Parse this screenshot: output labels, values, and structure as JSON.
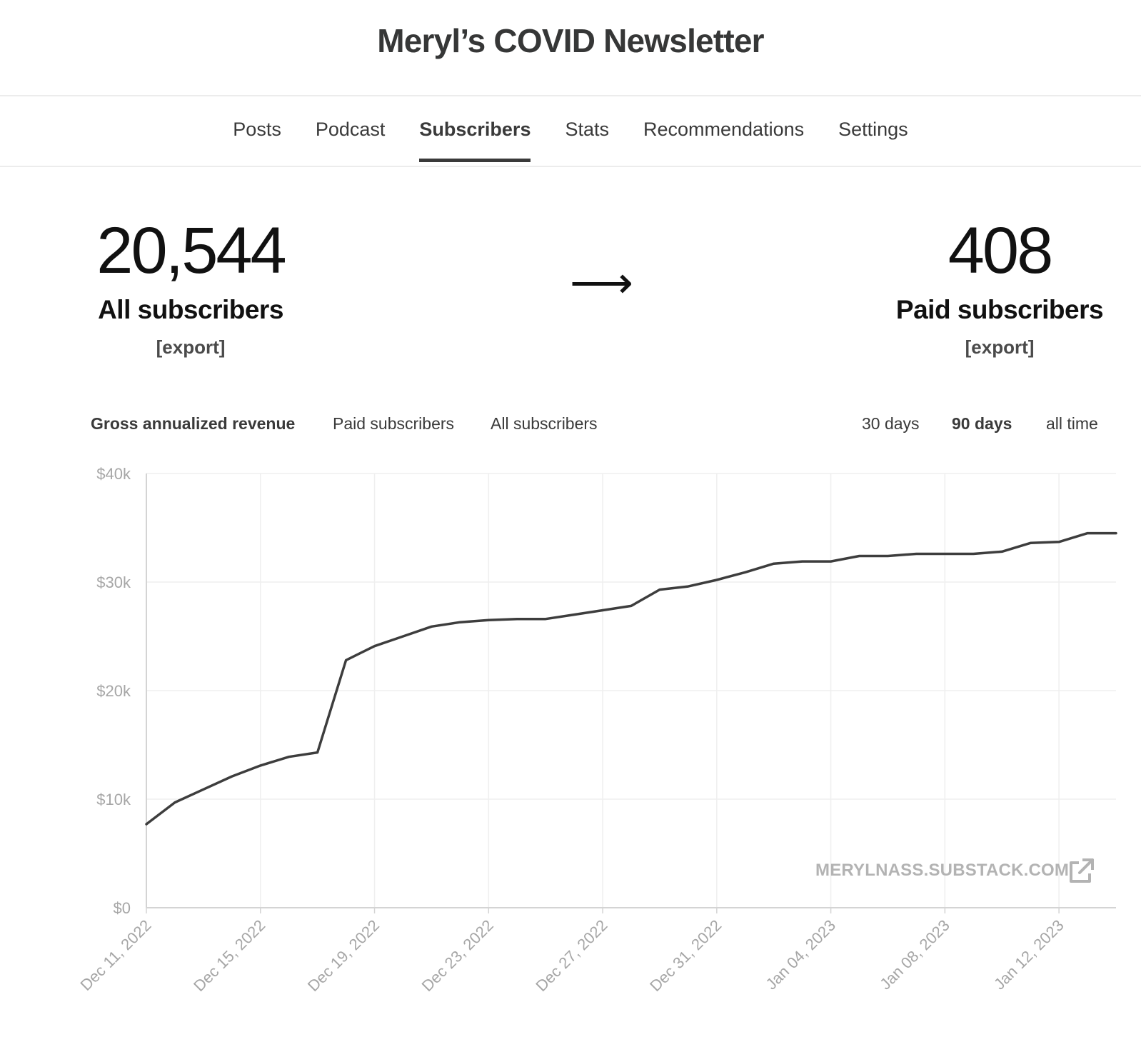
{
  "publication": {
    "title": "Meryl’s COVID Newsletter"
  },
  "nav": {
    "tabs": [
      {
        "label": "Posts"
      },
      {
        "label": "Podcast"
      },
      {
        "label": "Subscribers",
        "active": true
      },
      {
        "label": "Stats"
      },
      {
        "label": "Recommendations"
      },
      {
        "label": "Settings"
      }
    ]
  },
  "metrics": {
    "all": {
      "value": "20,544",
      "label": "All subscribers",
      "export": "[export]"
    },
    "arrow": "⟶",
    "paid": {
      "value": "408",
      "label": "Paid subscribers",
      "export": "[export]"
    }
  },
  "chart_controls": {
    "metrics": [
      {
        "label": "Gross annualized revenue",
        "active": true
      },
      {
        "label": "Paid subscribers"
      },
      {
        "label": "All subscribers"
      }
    ],
    "ranges": [
      {
        "label": "30 days"
      },
      {
        "label": "90 days",
        "active": true
      },
      {
        "label": "all time"
      }
    ]
  },
  "watermark": {
    "text": "MERYLNASS.SUBSTACK.COM",
    "icon": "external-link-icon"
  },
  "chart_data": {
    "type": "line",
    "x_start": "2022-12-11",
    "x": [
      "2022-12-11",
      "2022-12-12",
      "2022-12-13",
      "2022-12-14",
      "2022-12-15",
      "2022-12-16",
      "2022-12-17",
      "2022-12-18",
      "2022-12-19",
      "2022-12-20",
      "2022-12-21",
      "2022-12-22",
      "2022-12-23",
      "2022-12-24",
      "2022-12-25",
      "2022-12-26",
      "2022-12-27",
      "2022-12-28",
      "2022-12-29",
      "2022-12-30",
      "2022-12-31",
      "2023-01-01",
      "2023-01-02",
      "2023-01-03",
      "2023-01-04",
      "2023-01-05",
      "2023-01-06",
      "2023-01-07",
      "2023-01-08",
      "2023-01-09",
      "2023-01-10",
      "2023-01-11",
      "2023-01-12",
      "2023-01-13",
      "2023-01-14"
    ],
    "series": [
      {
        "values": [
          7700,
          9700,
          10900,
          12100,
          13100,
          13900,
          14300,
          22800,
          24100,
          25000,
          25900,
          26300,
          26500,
          26600,
          26600,
          27000,
          27400,
          27800,
          29300,
          29600,
          30200,
          30900,
          31700,
          31900,
          31900,
          32400,
          32400,
          32600,
          32600,
          32600,
          32800,
          33600,
          33700,
          34500,
          34500
        ]
      }
    ],
    "ylim": [
      0,
      40000
    ],
    "yticks": [
      0,
      10000,
      20000,
      30000,
      40000
    ],
    "ytick_labels": [
      "$0",
      "$10k",
      "$20k",
      "$30k",
      "$40k"
    ],
    "xticks": [
      "2022-12-11",
      "2022-12-15",
      "2022-12-19",
      "2022-12-23",
      "2022-12-27",
      "2022-12-31",
      "2023-01-04",
      "2023-01-08",
      "2023-01-12"
    ],
    "xtick_labels": [
      "Dec 11, 2022",
      "Dec 15, 2022",
      "Dec 19, 2022",
      "Dec 23, 2022",
      "Dec 27, 2022",
      "Dec 31, 2022",
      "Jan 04, 2023",
      "Jan 08, 2023",
      "Jan 12, 2023"
    ],
    "grid": true,
    "colors": {
      "line": "#3d3d3d",
      "grid": "#efefef",
      "axis": "#d4d4d4",
      "tick_text": "#a6a6a6"
    }
  }
}
